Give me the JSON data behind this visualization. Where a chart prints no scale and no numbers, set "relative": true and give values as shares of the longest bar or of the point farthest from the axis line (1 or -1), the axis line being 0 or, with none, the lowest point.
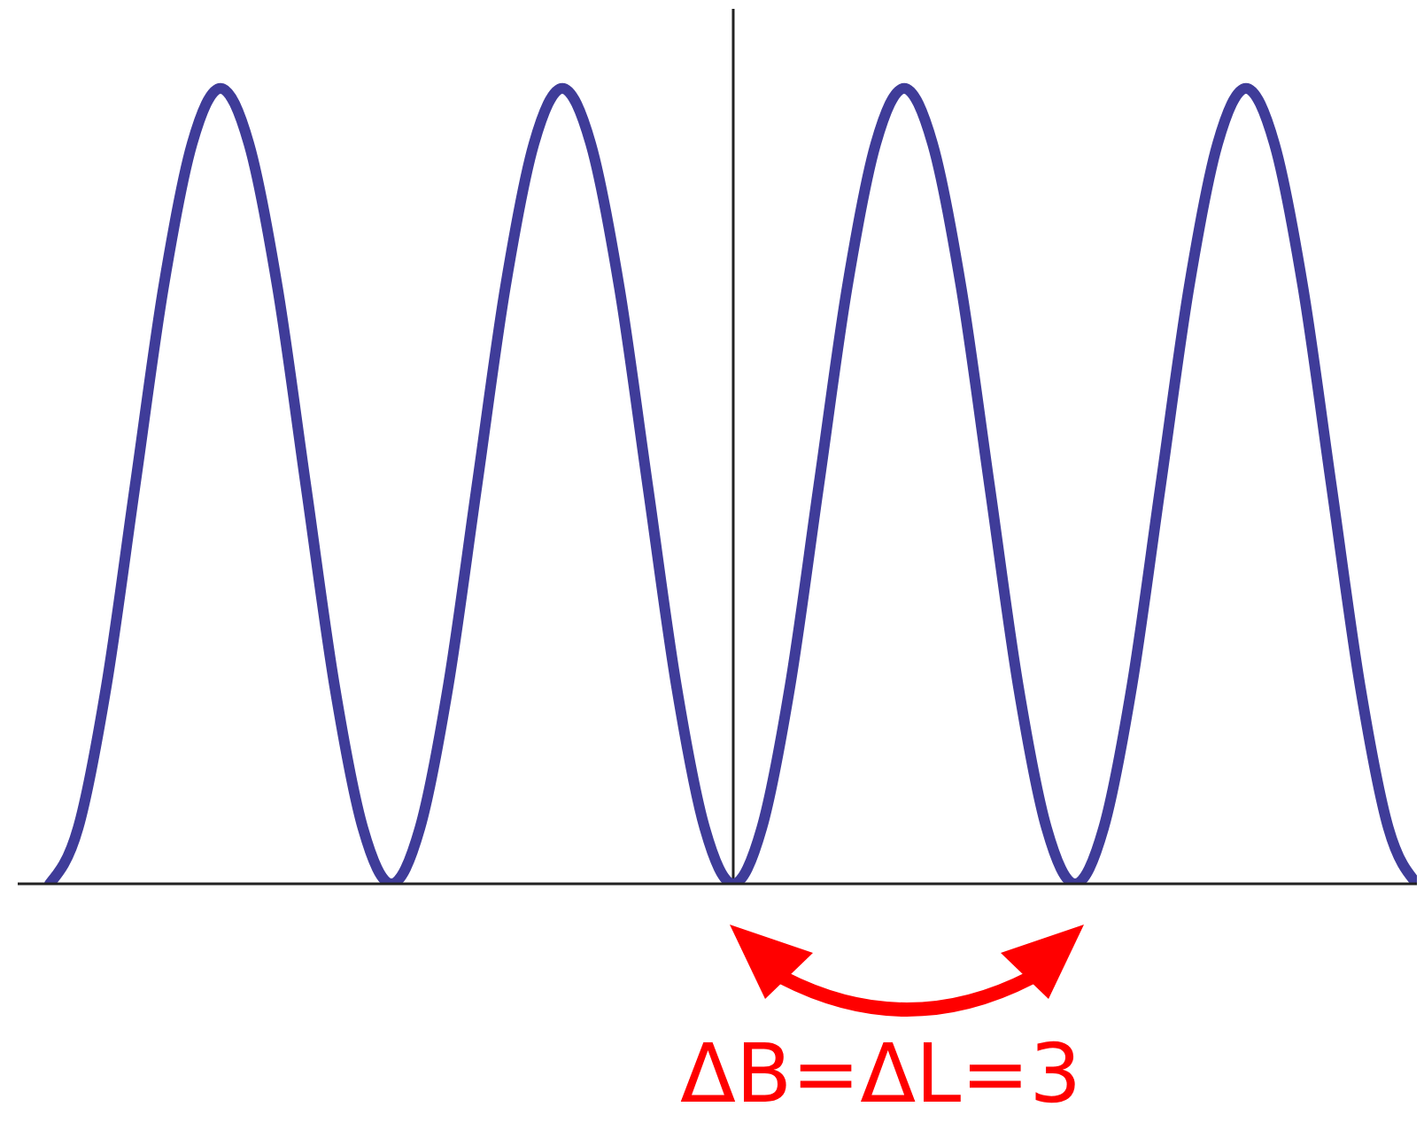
{
  "chart_data": {
    "type": "line",
    "relative": true,
    "categories": [
      null,
      null,
      null,
      null,
      null,
      null,
      null,
      null,
      null,
      null,
      null,
      null,
      null,
      null,
      null,
      null,
      null,
      null,
      null,
      null,
      null,
      null,
      null,
      null,
      null,
      null,
      null,
      null,
      null,
      null,
      null,
      null,
      null,
      null,
      null,
      null,
      null,
      null,
      null,
      null,
      null,
      null,
      null,
      null,
      null,
      null,
      null,
      null,
      null
    ],
    "series": [
      {
        "color": "#3f3c99",
        "values": [
          0,
          0.07,
          0.25,
          0.5,
          0.75,
          0.93,
          1,
          0.93,
          0.75,
          0.5,
          0.25,
          0.07,
          0,
          0.07,
          0.25,
          0.5,
          0.75,
          0.93,
          1,
          0.93,
          0.75,
          0.5,
          0.25,
          0.07,
          0,
          0.07,
          0.25,
          0.5,
          0.75,
          0.93,
          1,
          0.93,
          0.75,
          0.5,
          0.25,
          0.07,
          0,
          0.07,
          0.25,
          0.5,
          0.75,
          0.93,
          1,
          0.93,
          0.75,
          0.5,
          0.25,
          0.07,
          0
        ]
      }
    ],
    "annotations": [
      "ΔB=ΔL=3"
    ]
  }
}
